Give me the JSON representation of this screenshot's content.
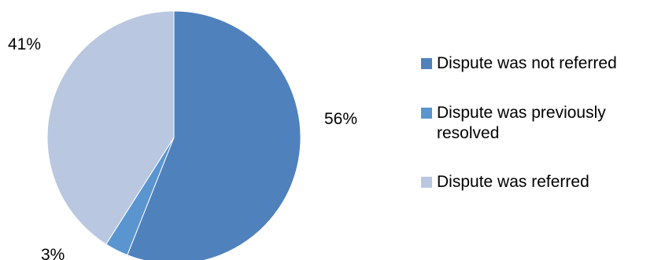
{
  "chart_data": {
    "type": "pie",
    "title": "",
    "slices": [
      {
        "label": "Dispute was not referred",
        "value": 56,
        "display": "56%",
        "color": "#4f81bd"
      },
      {
        "label": "Dispute was previously resolved",
        "value": 3,
        "display": "3%",
        "color": "#5b95d0"
      },
      {
        "label": "Dispute was referred",
        "value": 41,
        "display": "41%",
        "color": "#b9c7e0"
      }
    ],
    "legend_position": "right"
  }
}
